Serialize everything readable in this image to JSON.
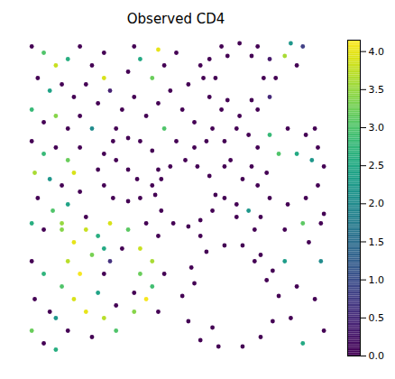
{
  "chart_data": {
    "type": "scatter",
    "title": "Observed CD4",
    "tick_labels": false,
    "xlim": [
      0,
      100
    ],
    "ylim": [
      0,
      100
    ],
    "colorbar": {
      "color": "viridis",
      "range": [
        0,
        4.15
      ],
      "ticks": [
        {
          "value": 0,
          "label": "0.0"
        },
        0.5,
        {
          "value": 1,
          "label": "1.0"
        },
        1.5,
        {
          "value": 2,
          "label": "2.0"
        },
        2.5,
        {
          "value": 3,
          "label": "3.0"
        },
        3.5,
        {
          "value": 4,
          "label": "4.0"
        }
      ]
    },
    "points": [
      [
        83,
        88,
        0
      ],
      [
        81,
        94,
        0.3
      ],
      [
        77,
        98,
        0
      ],
      [
        71,
        99,
        0
      ],
      [
        65,
        98,
        0
      ],
      [
        61,
        94,
        0
      ],
      [
        59,
        88,
        0
      ],
      [
        61,
        82,
        0
      ],
      [
        65,
        78,
        0
      ],
      [
        71,
        76,
        0
      ],
      [
        77,
        78,
        0
      ],
      [
        81,
        82,
        0.5
      ],
      [
        79,
        88,
        0
      ],
      [
        75,
        95,
        0
      ],
      [
        67,
        95,
        0
      ],
      [
        63,
        88,
        0
      ],
      [
        67,
        81,
        0
      ],
      [
        75,
        81,
        0
      ],
      [
        86,
        95,
        3.6
      ],
      [
        88,
        99,
        2.2
      ],
      [
        90,
        92,
        0
      ],
      [
        92,
        98,
        0.8
      ],
      [
        99,
        60,
        0
      ],
      [
        97,
        66,
        0
      ],
      [
        93,
        70,
        0
      ],
      [
        87,
        72,
        0
      ],
      [
        81,
        70,
        2.8
      ],
      [
        77,
        66,
        0
      ],
      [
        75,
        60,
        0
      ],
      [
        77,
        54,
        0
      ],
      [
        81,
        50,
        0
      ],
      [
        87,
        48,
        0
      ],
      [
        93,
        50,
        0
      ],
      [
        97,
        54,
        0
      ],
      [
        84,
        64,
        3.0
      ],
      [
        90,
        64,
        2.5
      ],
      [
        95,
        62,
        2.2
      ],
      [
        80,
        58,
        0
      ],
      [
        96,
        72,
        0
      ],
      [
        99,
        45,
        0
      ],
      [
        63,
        51,
        0
      ],
      [
        61,
        57,
        0
      ],
      [
        57,
        60,
        0
      ],
      [
        53,
        62,
        0
      ],
      [
        48,
        60,
        0
      ],
      [
        45,
        56,
        0
      ],
      [
        43,
        51,
        0
      ],
      [
        45,
        46,
        0
      ],
      [
        49,
        42,
        0
      ],
      [
        54,
        41,
        0
      ],
      [
        58,
        43,
        0
      ],
      [
        62,
        46,
        0
      ],
      [
        56,
        66,
        0
      ],
      [
        60,
        68,
        0
      ],
      [
        50,
        68,
        0
      ],
      [
        66,
        60,
        0
      ],
      [
        44,
        59,
        0
      ],
      [
        42,
        65,
        0
      ],
      [
        38,
        68,
        0
      ],
      [
        34,
        69,
        0
      ],
      [
        29,
        68,
        0
      ],
      [
        26,
        64,
        0
      ],
      [
        24,
        59,
        0
      ],
      [
        26,
        54,
        0
      ],
      [
        29,
        50,
        0
      ],
      [
        34,
        49,
        0
      ],
      [
        38,
        50,
        0
      ],
      [
        42,
        54,
        0
      ],
      [
        34,
        59,
        0
      ],
      [
        30,
        62,
        0
      ],
      [
        37,
        56,
        0
      ],
      [
        32,
        78,
        0
      ],
      [
        36,
        82,
        0
      ],
      [
        40,
        76,
        0
      ],
      [
        44,
        80,
        0
      ],
      [
        48,
        84,
        0
      ],
      [
        52,
        78,
        0
      ],
      [
        56,
        74,
        0
      ],
      [
        42,
        88,
        3.2
      ],
      [
        46,
        92,
        0
      ],
      [
        38,
        94,
        2.5
      ],
      [
        50,
        96,
        0
      ],
      [
        34,
        90,
        0
      ],
      [
        28,
        84,
        0.4
      ],
      [
        30,
        72,
        0
      ],
      [
        46,
        72,
        3.0
      ],
      [
        54,
        86,
        0
      ],
      [
        58,
        92,
        0
      ],
      [
        44,
        97,
        4.0
      ],
      [
        36,
        98,
        0
      ],
      [
        62,
        72,
        0
      ],
      [
        2,
        98,
        0
      ],
      [
        6,
        96,
        3.0
      ],
      [
        10,
        92,
        3.8
      ],
      [
        14,
        94,
        2.6
      ],
      [
        18,
        98,
        0
      ],
      [
        22,
        92,
        0
      ],
      [
        26,
        96,
        0
      ],
      [
        4,
        88,
        0
      ],
      [
        8,
        84,
        2.4
      ],
      [
        12,
        86,
        0
      ],
      [
        16,
        82,
        0
      ],
      [
        20,
        86,
        0
      ],
      [
        24,
        80,
        0
      ],
      [
        2,
        78,
        2.8
      ],
      [
        6,
        74,
        0
      ],
      [
        10,
        76,
        3.4
      ],
      [
        14,
        72,
        0
      ],
      [
        18,
        76,
        0
      ],
      [
        22,
        72,
        2.0
      ],
      [
        26,
        88,
        3.9
      ],
      [
        2,
        68,
        0
      ],
      [
        6,
        64,
        2.8
      ],
      [
        10,
        66,
        0
      ],
      [
        14,
        62,
        3.2
      ],
      [
        18,
        66,
        0
      ],
      [
        3,
        58,
        3.6
      ],
      [
        8,
        56,
        2.2
      ],
      [
        12,
        54,
        0
      ],
      [
        16,
        58,
        3.9
      ],
      [
        4,
        50,
        0
      ],
      [
        9,
        46,
        3.0
      ],
      [
        14,
        48,
        2.4
      ],
      [
        18,
        52,
        0
      ],
      [
        2,
        42,
        2.6
      ],
      [
        6,
        40,
        0
      ],
      [
        12,
        42,
        3.5
      ],
      [
        20,
        44,
        0
      ],
      [
        12,
        40,
        3.4
      ],
      [
        16,
        36,
        4.0
      ],
      [
        20,
        40,
        3.8
      ],
      [
        24,
        38,
        2.6
      ],
      [
        28,
        42,
        3.9
      ],
      [
        34,
        40,
        3.1
      ],
      [
        40,
        42,
        0
      ],
      [
        44,
        38,
        0
      ],
      [
        14,
        30,
        3.7
      ],
      [
        18,
        26,
        4.1
      ],
      [
        22,
        32,
        3.3
      ],
      [
        26,
        34,
        2.5
      ],
      [
        38,
        34,
        3.8
      ],
      [
        42,
        30,
        3.6
      ],
      [
        46,
        26,
        0
      ],
      [
        12,
        22,
        3.0
      ],
      [
        16,
        18,
        3.9
      ],
      [
        20,
        14,
        4.0
      ],
      [
        24,
        20,
        2.4
      ],
      [
        26,
        12,
        3.7
      ],
      [
        30,
        16,
        0
      ],
      [
        36,
        14,
        3.4
      ],
      [
        40,
        18,
        4.1
      ],
      [
        44,
        14,
        0
      ],
      [
        42,
        22,
        2.9
      ],
      [
        38,
        26,
        3.2
      ],
      [
        26,
        26,
        0
      ],
      [
        32,
        34,
        0
      ],
      [
        28,
        30,
        0.6
      ],
      [
        36,
        20,
        0
      ],
      [
        10,
        12,
        2.2
      ],
      [
        14,
        8,
        0
      ],
      [
        30,
        8,
        3.0
      ],
      [
        22,
        6,
        0
      ],
      [
        84,
        19,
        0
      ],
      [
        82,
        27,
        0
      ],
      [
        78,
        32,
        0
      ],
      [
        72,
        35,
        0
      ],
      [
        66,
        35,
        0
      ],
      [
        60,
        33,
        0
      ],
      [
        55,
        28,
        0
      ],
      [
        52,
        19,
        0
      ],
      [
        54,
        11,
        0
      ],
      [
        58,
        5,
        0
      ],
      [
        64,
        3,
        0
      ],
      [
        72,
        3,
        0
      ],
      [
        78,
        6,
        0
      ],
      [
        82,
        11,
        0
      ],
      [
        80,
        24,
        0
      ],
      [
        56,
        23,
        0
      ],
      [
        62,
        9,
        0
      ],
      [
        76,
        30,
        0
      ],
      [
        86,
        30,
        2.3
      ],
      [
        88,
        12,
        0
      ],
      [
        90,
        22,
        0
      ],
      [
        58,
        38,
        0
      ],
      [
        76,
        40,
        0
      ],
      [
        70,
        44,
        0
      ],
      [
        92,
        4,
        2.5
      ],
      [
        94,
        36,
        0
      ],
      [
        98,
        30,
        2.0
      ],
      [
        96,
        18,
        0
      ],
      [
        99,
        8,
        0
      ],
      [
        86,
        40,
        0
      ],
      [
        92,
        42,
        3.1
      ],
      [
        98,
        42,
        0
      ],
      [
        2,
        30,
        0
      ],
      [
        6,
        26,
        2.7
      ],
      [
        3,
        18,
        0
      ],
      [
        8,
        14,
        0
      ],
      [
        2,
        8,
        3.2
      ],
      [
        6,
        4,
        0
      ],
      [
        10,
        2,
        2.6
      ],
      [
        66,
        68,
        0
      ],
      [
        70,
        72,
        0
      ],
      [
        74,
        70,
        0
      ],
      [
        68,
        62,
        0
      ],
      [
        72,
        56,
        0
      ],
      [
        70,
        48,
        0
      ],
      [
        66,
        50,
        0
      ],
      [
        74,
        46,
        2.2
      ],
      [
        78,
        44,
        0
      ]
    ]
  }
}
